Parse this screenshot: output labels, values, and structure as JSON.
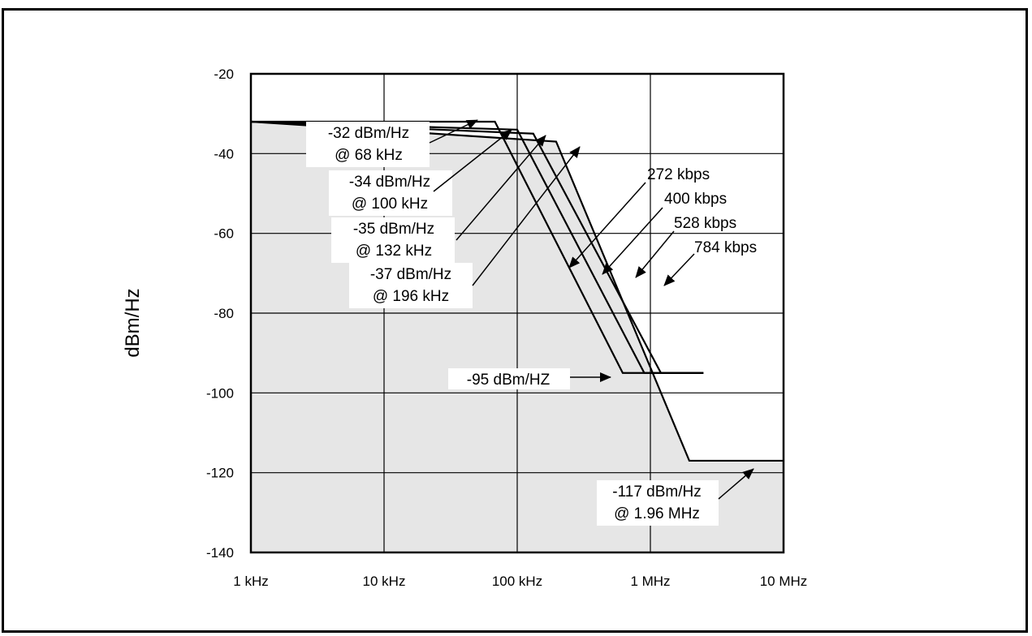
{
  "chart_data": {
    "type": "line",
    "xscale": "log",
    "xlim_hz": [
      1000,
      10000000
    ],
    "ylim": [
      -140,
      -20
    ],
    "ylabel": "dBm/Hz",
    "xlabel": "",
    "grid": true,
    "x_ticks": [
      {
        "value": 1000,
        "label": "1 kHz"
      },
      {
        "value": 10000,
        "label": "10 kHz"
      },
      {
        "value": 100000,
        "label": "100 kHz"
      },
      {
        "value": 1000000,
        "label": "1 MHz"
      },
      {
        "value": 10000000,
        "label": "10 MHz"
      }
    ],
    "y_ticks": [
      {
        "value": -20,
        "label": "-20"
      },
      {
        "value": -40,
        "label": "-40"
      },
      {
        "value": -60,
        "label": "-60"
      },
      {
        "value": -80,
        "label": "-80"
      },
      {
        "value": -100,
        "label": "-100"
      },
      {
        "value": -120,
        "label": "-120"
      },
      {
        "value": -140,
        "label": "-140"
      }
    ],
    "series": [
      {
        "name": "272 kbps",
        "points": [
          [
            1000,
            -32
          ],
          [
            68000,
            -32
          ],
          [
            620000,
            -95
          ],
          [
            2500000,
            -95
          ]
        ]
      },
      {
        "name": "400 kbps",
        "points": [
          [
            1000,
            -32
          ],
          [
            100000,
            -34
          ],
          [
            900000,
            -95
          ],
          [
            2500000,
            -95
          ]
        ]
      },
      {
        "name": "528 kbps",
        "points": [
          [
            1000,
            -32
          ],
          [
            132000,
            -35
          ],
          [
            1200000,
            -95
          ],
          [
            2500000,
            -95
          ]
        ]
      },
      {
        "name": "784 kbps",
        "points": [
          [
            1000,
            -32
          ],
          [
            196000,
            -37
          ],
          [
            1960000,
            -117
          ],
          [
            10000000,
            -117
          ]
        ]
      }
    ],
    "annotations": [
      {
        "lines": [
          "-32 dBm/Hz",
          "@ 68 kHz"
        ]
      },
      {
        "lines": [
          "-34 dBm/Hz",
          "@ 100 kHz"
        ]
      },
      {
        "lines": [
          "-35 dBm/Hz",
          "@ 132 kHz"
        ]
      },
      {
        "lines": [
          "-37 dBm/Hz",
          "@ 196 kHz"
        ]
      },
      {
        "lines": [
          "-95 dBm/HZ"
        ]
      },
      {
        "lines": [
          "-117 dBm/Hz",
          "@ 1.96 MHz"
        ]
      }
    ],
    "fill_color": "#e6e6e6",
    "line_color": "#000000"
  }
}
